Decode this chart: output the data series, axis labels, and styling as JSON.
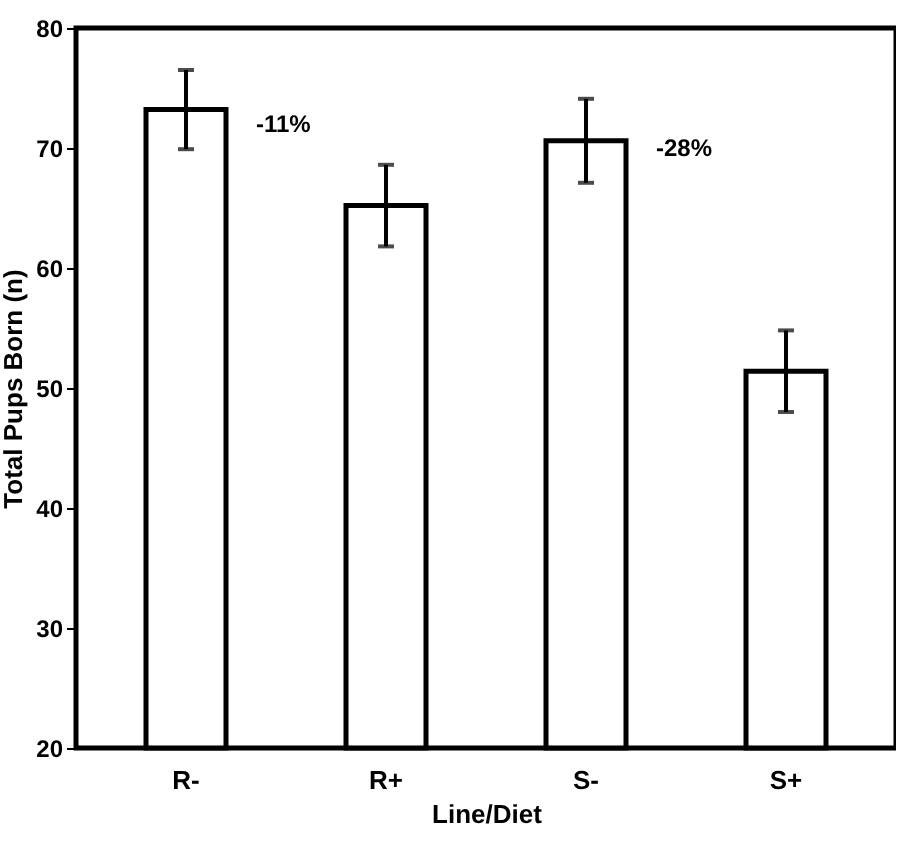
{
  "chart_data": {
    "type": "bar",
    "xlabel": "Line/Diet",
    "ylabel": "Total Pups Born (n)",
    "categories": [
      "R-",
      "R+",
      "S-",
      "S+"
    ],
    "values": [
      73.2,
      65.2,
      70.6,
      51.4
    ],
    "errors": [
      3.3,
      3.4,
      3.5,
      3.4
    ],
    "color": "#ffffff",
    "ylim": [
      20,
      80
    ],
    "yticks": [
      20,
      30,
      40,
      50,
      60,
      70,
      80
    ],
    "grid": false,
    "annotations": [
      {
        "text": "-11%",
        "x": "R-",
        "y": 72
      },
      {
        "text": "-28%",
        "x": "S-",
        "y": 70
      }
    ]
  }
}
